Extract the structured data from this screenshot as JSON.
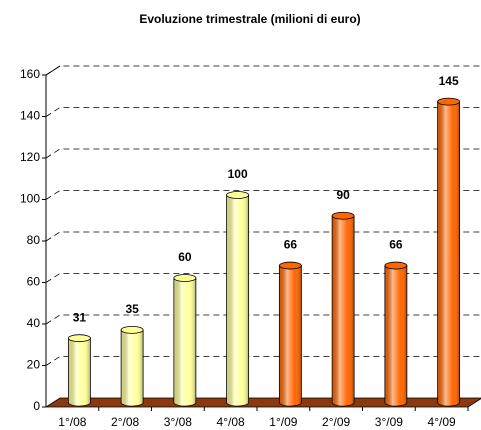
{
  "chart_data": {
    "type": "bar",
    "title": "Evoluzione trimestrale (milioni di euro)",
    "categories": [
      "1°/08",
      "2°/08",
      "3°/08",
      "4°/08",
      "1°/09",
      "2°/09",
      "3°/09",
      "4°/09"
    ],
    "values": [
      31,
      35,
      60,
      100,
      66,
      90,
      66,
      145
    ],
    "colors": [
      "#ffff99",
      "#ffff99",
      "#ffff99",
      "#ffff99",
      "#ff6600",
      "#ff6600",
      "#ff6600",
      "#ff6600"
    ],
    "ylim": [
      0,
      160
    ],
    "yticks": [
      0,
      20,
      40,
      60,
      80,
      100,
      120,
      140,
      160
    ],
    "grid": true
  }
}
